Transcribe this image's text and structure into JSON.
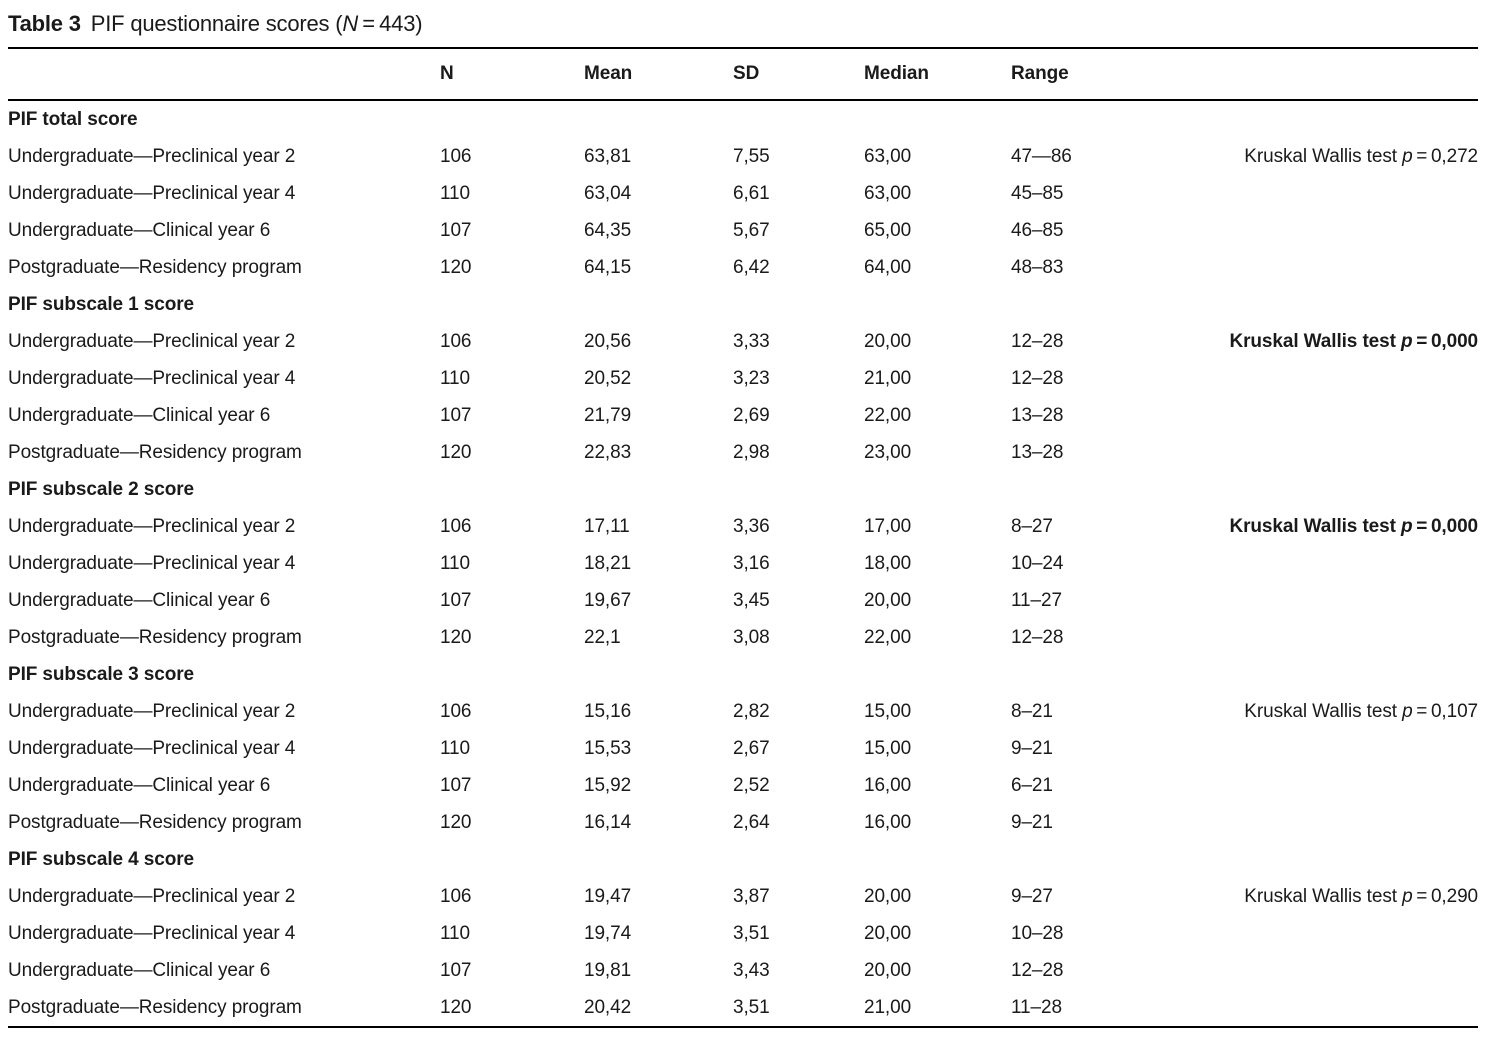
{
  "title": {
    "label": "Table 3",
    "text": "PIF questionnaire scores (",
    "n": "N",
    "suffix": " = 443)"
  },
  "table": {
    "columns": {
      "n": "N",
      "mean": "Mean",
      "sd": "SD",
      "median": "Median",
      "range": "Range"
    },
    "sections": [
      {
        "header": "PIF total score",
        "test": {
          "prefix": "Kruskal Wallis test ",
          "p": "p",
          "value": " = 0,272",
          "bold": false
        },
        "rows": [
          {
            "label": "Undergraduate—Preclinical year 2",
            "n": "106",
            "mean": "63,81",
            "sd": "7,55",
            "median": "63,00",
            "range": "47—86"
          },
          {
            "label": "Undergraduate—Preclinical year 4",
            "n": "110",
            "mean": "63,04",
            "sd": "6,61",
            "median": "63,00",
            "range": "45–85"
          },
          {
            "label": "Undergraduate—Clinical year 6",
            "n": "107",
            "mean": "64,35",
            "sd": "5,67",
            "median": "65,00",
            "range": "46–85"
          },
          {
            "label": "Postgraduate—Residency program",
            "n": "120",
            "mean": "64,15",
            "sd": "6,42",
            "median": "64,00",
            "range": "48–83"
          }
        ]
      },
      {
        "header": "PIF subscale 1 score",
        "test": {
          "prefix": "Kruskal Wallis test ",
          "p": "p",
          "value": " = 0,000",
          "bold": true
        },
        "rows": [
          {
            "label": "Undergraduate—Preclinical year 2",
            "n": "106",
            "mean": "20,56",
            "sd": "3,33",
            "median": "20,00",
            "range": "12–28"
          },
          {
            "label": "Undergraduate—Preclinical year 4",
            "n": "110",
            "mean": "20,52",
            "sd": "3,23",
            "median": "21,00",
            "range": "12–28"
          },
          {
            "label": "Undergraduate—Clinical year 6",
            "n": "107",
            "mean": "21,79",
            "sd": "2,69",
            "median": "22,00",
            "range": "13–28"
          },
          {
            "label": "Postgraduate—Residency program",
            "n": "120",
            "mean": "22,83",
            "sd": "2,98",
            "median": "23,00",
            "range": "13–28"
          }
        ]
      },
      {
        "header": "PIF subscale 2 score",
        "test": {
          "prefix": "Kruskal Wallis test ",
          "p": "p",
          "value": " = 0,000",
          "bold": true
        },
        "rows": [
          {
            "label": "Undergraduate—Preclinical year 2",
            "n": "106",
            "mean": "17,11",
            "sd": "3,36",
            "median": "17,00",
            "range": "8–27"
          },
          {
            "label": "Undergraduate—Preclinical year 4",
            "n": "110",
            "mean": "18,21",
            "sd": "3,16",
            "median": "18,00",
            "range": "10–24"
          },
          {
            "label": "Undergraduate—Clinical year 6",
            "n": "107",
            "mean": "19,67",
            "sd": "3,45",
            "median": "20,00",
            "range": "11–27"
          },
          {
            "label": "Postgraduate—Residency program",
            "n": "120",
            "mean": "22,1",
            "sd": "3,08",
            "median": "22,00",
            "range": "12–28"
          }
        ]
      },
      {
        "header": "PIF subscale 3 score",
        "test": {
          "prefix": "Kruskal Wallis test ",
          "p": "p",
          "value": " = 0,107",
          "bold": false
        },
        "rows": [
          {
            "label": "Undergraduate—Preclinical year 2",
            "n": "106",
            "mean": "15,16",
            "sd": "2,82",
            "median": "15,00",
            "range": "8–21"
          },
          {
            "label": "Undergraduate—Preclinical year 4",
            "n": "110",
            "mean": "15,53",
            "sd": "2,67",
            "median": "15,00",
            "range": "9–21"
          },
          {
            "label": "Undergraduate—Clinical year 6",
            "n": "107",
            "mean": "15,92",
            "sd": "2,52",
            "median": "16,00",
            "range": "6–21"
          },
          {
            "label": "Postgraduate—Residency program",
            "n": "120",
            "mean": "16,14",
            "sd": "2,64",
            "median": "16,00",
            "range": "9–21"
          }
        ]
      },
      {
        "header": "PIF subscale 4 score",
        "test": {
          "prefix": "Kruskal Wallis test ",
          "p": "p",
          "value": " = 0,290",
          "bold": false
        },
        "rows": [
          {
            "label": "Undergraduate—Preclinical year 2",
            "n": "106",
            "mean": "19,47",
            "sd": "3,87",
            "median": "20,00",
            "range": "9–27"
          },
          {
            "label": "Undergraduate—Preclinical year 4",
            "n": "110",
            "mean": "19,74",
            "sd": "3,51",
            "median": "20,00",
            "range": "10–28"
          },
          {
            "label": "Undergraduate—Clinical year 6",
            "n": "107",
            "mean": "19,81",
            "sd": "3,43",
            "median": "20,00",
            "range": "12–28"
          },
          {
            "label": "Postgraduate—Residency program",
            "n": "120",
            "mean": "20,42",
            "sd": "3,51",
            "median": "21,00",
            "range": "11–28"
          }
        ]
      }
    ]
  }
}
